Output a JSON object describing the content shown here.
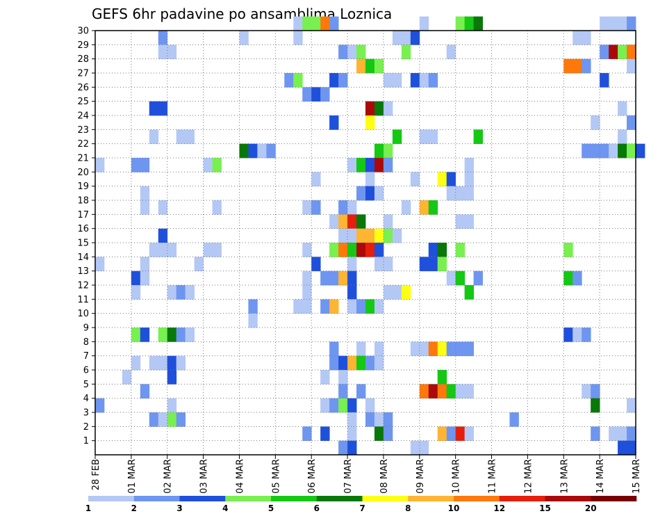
{
  "chart_data": {
    "type": "heatmap",
    "title": "GEFS 6hr padavine po ansamblima Loznica",
    "xlabel": "",
    "ylabel": "",
    "x_ticks": [
      "28 FEB",
      "01 MAR",
      "02 MAR",
      "03 MAR",
      "04 MAR",
      "05 MAR",
      "06 MAR",
      "07 MAR",
      "08 MAR",
      "09 MAR",
      "10 MAR",
      "11 MAR",
      "12 MAR",
      "13 MAR",
      "14 MAR",
      "15 MAR"
    ],
    "y_ticks": [
      1,
      2,
      3,
      4,
      5,
      6,
      7,
      8,
      9,
      10,
      11,
      12,
      13,
      14,
      15,
      16,
      17,
      18,
      19,
      20,
      21,
      22,
      23,
      24,
      25,
      26,
      27,
      28,
      29,
      30
    ],
    "ylim": [
      0,
      30
    ],
    "steps_per_day": 4,
    "grid": true,
    "colorbar": {
      "placement": "bottom",
      "labels": [
        "1",
        "2",
        "3",
        "4",
        "5",
        "6",
        "7",
        "8",
        "10",
        "12",
        "15",
        "20"
      ],
      "colors": [
        "#b4c8f5",
        "#6e96f0",
        "#1e50dc",
        "#78f050",
        "#14c814",
        "#087808",
        "#ffff14",
        "#ffb432",
        "#ff780a",
        "#e61e0a",
        "#aa0a0a",
        "#780000"
      ]
    },
    "cells": [
      [
        22,
        30,
        1
      ],
      [
        23,
        30,
        4
      ],
      [
        24,
        30,
        4
      ],
      [
        25,
        30,
        9
      ],
      [
        26,
        30,
        2
      ],
      [
        36,
        30,
        1
      ],
      [
        40,
        30,
        4
      ],
      [
        41,
        30,
        5
      ],
      [
        42,
        30,
        6
      ],
      [
        56,
        30,
        1
      ],
      [
        57,
        30,
        1
      ],
      [
        58,
        30,
        1
      ],
      [
        59,
        30,
        2
      ],
      [
        7,
        29,
        2
      ],
      [
        16,
        29,
        1
      ],
      [
        22,
        29,
        1
      ],
      [
        33,
        29,
        1
      ],
      [
        34,
        29,
        1
      ],
      [
        35,
        29,
        3
      ],
      [
        53,
        29,
        1
      ],
      [
        54,
        29,
        1
      ],
      [
        7,
        28,
        1
      ],
      [
        8,
        28,
        1
      ],
      [
        27,
        28,
        2
      ],
      [
        28,
        28,
        1
      ],
      [
        29,
        28,
        4
      ],
      [
        34,
        28,
        4
      ],
      [
        39,
        28,
        1
      ],
      [
        56,
        28,
        2
      ],
      [
        57,
        28,
        11
      ],
      [
        58,
        28,
        4
      ],
      [
        59,
        28,
        9
      ],
      [
        29,
        27,
        8
      ],
      [
        30,
        27,
        5
      ],
      [
        31,
        27,
        4
      ],
      [
        52,
        27,
        9
      ],
      [
        53,
        27,
        9
      ],
      [
        54,
        27,
        2
      ],
      [
        59,
        27,
        1
      ],
      [
        21,
        26,
        2
      ],
      [
        22,
        26,
        4
      ],
      [
        26,
        26,
        3
      ],
      [
        27,
        26,
        2
      ],
      [
        32,
        26,
        1
      ],
      [
        33,
        26,
        1
      ],
      [
        35,
        26,
        3
      ],
      [
        36,
        26,
        1
      ],
      [
        37,
        26,
        2
      ],
      [
        56,
        26,
        3
      ],
      [
        23,
        25,
        2
      ],
      [
        24,
        25,
        3
      ],
      [
        25,
        25,
        2
      ],
      [
        6,
        24,
        3
      ],
      [
        7,
        24,
        3
      ],
      [
        30,
        24,
        11
      ],
      [
        31,
        24,
        6
      ],
      [
        32,
        24,
        1
      ],
      [
        58,
        24,
        1
      ],
      [
        26,
        23,
        3
      ],
      [
        30,
        23,
        7
      ],
      [
        55,
        23,
        1
      ],
      [
        59,
        23,
        2
      ],
      [
        6,
        22,
        1
      ],
      [
        9,
        22,
        1
      ],
      [
        10,
        22,
        1
      ],
      [
        33,
        22,
        5
      ],
      [
        36,
        22,
        1
      ],
      [
        37,
        22,
        1
      ],
      [
        42,
        22,
        5
      ],
      [
        58,
        22,
        1
      ],
      [
        16,
        21,
        6
      ],
      [
        17,
        21,
        3
      ],
      [
        18,
        21,
        1
      ],
      [
        19,
        21,
        2
      ],
      [
        31,
        21,
        5
      ],
      [
        32,
        21,
        4
      ],
      [
        54,
        21,
        2
      ],
      [
        55,
        21,
        2
      ],
      [
        56,
        21,
        2
      ],
      [
        57,
        21,
        1
      ],
      [
        58,
        21,
        6
      ],
      [
        59,
        21,
        4
      ],
      [
        60,
        21,
        3
      ],
      [
        0,
        20,
        1
      ],
      [
        4,
        20,
        2
      ],
      [
        5,
        20,
        2
      ],
      [
        12,
        20,
        1
      ],
      [
        13,
        20,
        4
      ],
      [
        28,
        20,
        1
      ],
      [
        29,
        20,
        5
      ],
      [
        30,
        20,
        3
      ],
      [
        31,
        20,
        11
      ],
      [
        32,
        20,
        2
      ],
      [
        41,
        20,
        1
      ],
      [
        24,
        19,
        1
      ],
      [
        30,
        19,
        1
      ],
      [
        35,
        19,
        1
      ],
      [
        38,
        19,
        7
      ],
      [
        39,
        19,
        3
      ],
      [
        41,
        19,
        1
      ],
      [
        5,
        18,
        1
      ],
      [
        29,
        18,
        2
      ],
      [
        30,
        18,
        3
      ],
      [
        31,
        18,
        1
      ],
      [
        39,
        18,
        1
      ],
      [
        40,
        18,
        1
      ],
      [
        41,
        18,
        1
      ],
      [
        5,
        17,
        1
      ],
      [
        7,
        17,
        1
      ],
      [
        13,
        17,
        1
      ],
      [
        23,
        17,
        1
      ],
      [
        24,
        17,
        2
      ],
      [
        27,
        17,
        2
      ],
      [
        28,
        17,
        1
      ],
      [
        34,
        17,
        1
      ],
      [
        36,
        17,
        8
      ],
      [
        37,
        17,
        5
      ],
      [
        26,
        16,
        1
      ],
      [
        27,
        16,
        8
      ],
      [
        28,
        16,
        10
      ],
      [
        29,
        16,
        6
      ],
      [
        32,
        16,
        1
      ],
      [
        40,
        16,
        1
      ],
      [
        41,
        16,
        1
      ],
      [
        7,
        15,
        3
      ],
      [
        27,
        15,
        1
      ],
      [
        28,
        15,
        1
      ],
      [
        29,
        15,
        8
      ],
      [
        30,
        15,
        8
      ],
      [
        31,
        15,
        7
      ],
      [
        32,
        15,
        4
      ],
      [
        33,
        15,
        1
      ],
      [
        6,
        14,
        1
      ],
      [
        7,
        14,
        1
      ],
      [
        8,
        14,
        1
      ],
      [
        12,
        14,
        1
      ],
      [
        13,
        14,
        1
      ],
      [
        23,
        14,
        1
      ],
      [
        26,
        14,
        4
      ],
      [
        27,
        14,
        9
      ],
      [
        28,
        14,
        5
      ],
      [
        29,
        14,
        11
      ],
      [
        30,
        14,
        10
      ],
      [
        31,
        14,
        3
      ],
      [
        37,
        14,
        3
      ],
      [
        38,
        14,
        6
      ],
      [
        40,
        14,
        4
      ],
      [
        52,
        14,
        4
      ],
      [
        0,
        13,
        1
      ],
      [
        5,
        13,
        1
      ],
      [
        11,
        13,
        1
      ],
      [
        24,
        13,
        3
      ],
      [
        28,
        13,
        1
      ],
      [
        31,
        13,
        1
      ],
      [
        32,
        13,
        1
      ],
      [
        36,
        13,
        3
      ],
      [
        37,
        13,
        3
      ],
      [
        38,
        13,
        4
      ],
      [
        4,
        12,
        3
      ],
      [
        5,
        12,
        1
      ],
      [
        23,
        12,
        1
      ],
      [
        25,
        12,
        2
      ],
      [
        26,
        12,
        2
      ],
      [
        27,
        12,
        8
      ],
      [
        28,
        12,
        3
      ],
      [
        39,
        12,
        1
      ],
      [
        40,
        12,
        5
      ],
      [
        42,
        12,
        2
      ],
      [
        52,
        12,
        5
      ],
      [
        53,
        12,
        2
      ],
      [
        4,
        11,
        1
      ],
      [
        8,
        11,
        1
      ],
      [
        9,
        11,
        2
      ],
      [
        10,
        11,
        1
      ],
      [
        23,
        11,
        1
      ],
      [
        28,
        11,
        3
      ],
      [
        32,
        11,
        1
      ],
      [
        33,
        11,
        1
      ],
      [
        34,
        11,
        7
      ],
      [
        41,
        11,
        5
      ],
      [
        17,
        10,
        2
      ],
      [
        22,
        10,
        1
      ],
      [
        23,
        10,
        1
      ],
      [
        25,
        10,
        2
      ],
      [
        26,
        10,
        8
      ],
      [
        28,
        10,
        1
      ],
      [
        29,
        10,
        2
      ],
      [
        30,
        10,
        5
      ],
      [
        31,
        10,
        1
      ],
      [
        17,
        9,
        1
      ],
      [
        4,
        8,
        4
      ],
      [
        5,
        8,
        3
      ],
      [
        7,
        8,
        4
      ],
      [
        8,
        8,
        6
      ],
      [
        9,
        8,
        2
      ],
      [
        10,
        8,
        1
      ],
      [
        52,
        8,
        3
      ],
      [
        53,
        8,
        1
      ],
      [
        54,
        8,
        2
      ],
      [
        26,
        7,
        2
      ],
      [
        29,
        7,
        1
      ],
      [
        31,
        7,
        1
      ],
      [
        35,
        7,
        1
      ],
      [
        36,
        7,
        1
      ],
      [
        37,
        7,
        9
      ],
      [
        38,
        7,
        7
      ],
      [
        39,
        7,
        2
      ],
      [
        40,
        7,
        2
      ],
      [
        41,
        7,
        2
      ],
      [
        4,
        6,
        1
      ],
      [
        6,
        6,
        1
      ],
      [
        7,
        6,
        1
      ],
      [
        8,
        6,
        3
      ],
      [
        9,
        6,
        1
      ],
      [
        26,
        6,
        2
      ],
      [
        27,
        6,
        3
      ],
      [
        28,
        6,
        8
      ],
      [
        29,
        6,
        5
      ],
      [
        30,
        6,
        2
      ],
      [
        31,
        6,
        1
      ],
      [
        3,
        5,
        1
      ],
      [
        8,
        5,
        3
      ],
      [
        25,
        5,
        1
      ],
      [
        27,
        5,
        1
      ],
      [
        38,
        5,
        5
      ],
      [
        5,
        4,
        2
      ],
      [
        27,
        4,
        2
      ],
      [
        29,
        4,
        2
      ],
      [
        36,
        4,
        9
      ],
      [
        37,
        4,
        11
      ],
      [
        38,
        4,
        9
      ],
      [
        39,
        4,
        5
      ],
      [
        40,
        4,
        1
      ],
      [
        41,
        4,
        1
      ],
      [
        54,
        4,
        1
      ],
      [
        55,
        4,
        2
      ],
      [
        0,
        3,
        2
      ],
      [
        8,
        3,
        1
      ],
      [
        25,
        3,
        1
      ],
      [
        26,
        3,
        2
      ],
      [
        27,
        3,
        4
      ],
      [
        28,
        3,
        3
      ],
      [
        30,
        3,
        1
      ],
      [
        55,
        3,
        6
      ],
      [
        59,
        3,
        1
      ],
      [
        6,
        2,
        2
      ],
      [
        7,
        2,
        1
      ],
      [
        8,
        2,
        4
      ],
      [
        9,
        2,
        2
      ],
      [
        28,
        2,
        1
      ],
      [
        30,
        2,
        2
      ],
      [
        31,
        2,
        1
      ],
      [
        32,
        2,
        2
      ],
      [
        46,
        2,
        2
      ],
      [
        23,
        1,
        2
      ],
      [
        25,
        1,
        3
      ],
      [
        28,
        1,
        1
      ],
      [
        31,
        1,
        6
      ],
      [
        32,
        1,
        2
      ],
      [
        38,
        1,
        8
      ],
      [
        39,
        1,
        2
      ],
      [
        40,
        1,
        10
      ],
      [
        41,
        1,
        1
      ],
      [
        55,
        1,
        2
      ],
      [
        57,
        1,
        1
      ],
      [
        58,
        1,
        1
      ],
      [
        59,
        1,
        2
      ],
      [
        27,
        0,
        2
      ],
      [
        28,
        0,
        3
      ],
      [
        35,
        0,
        1
      ],
      [
        36,
        0,
        1
      ],
      [
        58,
        0,
        3
      ],
      [
        59,
        0,
        3
      ]
    ]
  }
}
